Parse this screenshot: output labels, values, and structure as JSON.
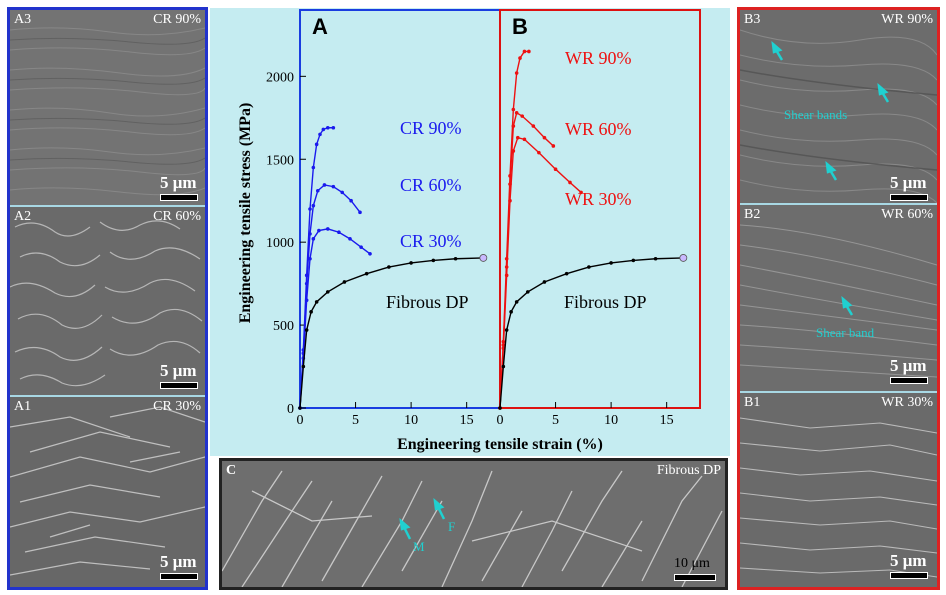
{
  "sem_panels": {
    "A3": {
      "id": "A3",
      "condition": "CR 90%",
      "scale": "5 μm"
    },
    "A2": {
      "id": "A2",
      "condition": "CR 60%",
      "scale": "5 μm"
    },
    "A1": {
      "id": "A1",
      "condition": "CR 30%",
      "scale": "5 μm"
    },
    "B3": {
      "id": "B3",
      "condition": "WR 90%",
      "scale": "5 μm",
      "annotation": "Shear bands"
    },
    "B2": {
      "id": "B2",
      "condition": "WR 60%",
      "scale": "5 μm",
      "annotation": "Shear band"
    },
    "B1": {
      "id": "B1",
      "condition": "WR 30%",
      "scale": "5 μm"
    },
    "C": {
      "id": "C",
      "condition": "Fibrous DP",
      "scale": "10 μm",
      "phase_m": "M",
      "phase_f": "F"
    }
  },
  "colors": {
    "cr": "#1a1aee",
    "wr": "#ee1111",
    "dp": "#000000",
    "chart_bg": "#c5ecf1",
    "annot": "#20d0d0"
  },
  "chart_data": [
    {
      "panel": "A",
      "type": "line",
      "xlabel": "Engineering tensile strain (%)",
      "ylabel": "Engineering tensile stress (MPa)",
      "xlim": [
        0,
        18
      ],
      "ylim": [
        0,
        2400
      ],
      "xticks": [
        0,
        5,
        10,
        15
      ],
      "yticks": [
        0,
        500,
        1000,
        1500,
        2000
      ],
      "series": [
        {
          "name": "CR 90%",
          "color": "#1a1aee",
          "points": [
            [
              0,
              0
            ],
            [
              0.3,
              350
            ],
            [
              0.6,
              800
            ],
            [
              0.9,
              1200
            ],
            [
              1.2,
              1450
            ],
            [
              1.5,
              1590
            ],
            [
              1.8,
              1650
            ],
            [
              2.1,
              1680
            ],
            [
              2.5,
              1690
            ],
            [
              3.0,
              1690
            ]
          ]
        },
        {
          "name": "CR 60%",
          "color": "#1a1aee",
          "points": [
            [
              0,
              0
            ],
            [
              0.3,
              330
            ],
            [
              0.6,
              750
            ],
            [
              0.9,
              1050
            ],
            [
              1.2,
              1220
            ],
            [
              1.6,
              1310
            ],
            [
              2.2,
              1345
            ],
            [
              3.0,
              1335
            ],
            [
              3.8,
              1300
            ],
            [
              4.6,
              1250
            ],
            [
              5.4,
              1180
            ]
          ]
        },
        {
          "name": "CR 30%",
          "color": "#1a1aee",
          "points": [
            [
              0,
              0
            ],
            [
              0.3,
              300
            ],
            [
              0.6,
              650
            ],
            [
              0.9,
              900
            ],
            [
              1.2,
              1020
            ],
            [
              1.7,
              1070
            ],
            [
              2.5,
              1080
            ],
            [
              3.5,
              1060
            ],
            [
              4.5,
              1020
            ],
            [
              5.5,
              970
            ],
            [
              6.3,
              930
            ]
          ]
        },
        {
          "name": "Fibrous DP",
          "color": "#000000",
          "points": [
            [
              0,
              0
            ],
            [
              0.3,
              250
            ],
            [
              0.6,
              470
            ],
            [
              1.0,
              580
            ],
            [
              1.5,
              640
            ],
            [
              2.5,
              700
            ],
            [
              4,
              760
            ],
            [
              6,
              810
            ],
            [
              8,
              850
            ],
            [
              10,
              875
            ],
            [
              12,
              890
            ],
            [
              14,
              900
            ],
            [
              16.5,
              905
            ]
          ]
        }
      ]
    },
    {
      "panel": "B",
      "type": "line",
      "xlim": [
        0,
        18
      ],
      "ylim": [
        0,
        2400
      ],
      "xticks": [
        0,
        5,
        10,
        15
      ],
      "series": [
        {
          "name": "WR 90%",
          "color": "#ee1111",
          "points": [
            [
              0,
              0
            ],
            [
              0.3,
              400
            ],
            [
              0.6,
              900
            ],
            [
              0.9,
              1400
            ],
            [
              1.2,
              1800
            ],
            [
              1.5,
              2020
            ],
            [
              1.8,
              2110
            ],
            [
              2.2,
              2150
            ],
            [
              2.6,
              2150
            ]
          ]
        },
        {
          "name": "WR 60%",
          "color": "#ee1111",
          "points": [
            [
              0,
              0
            ],
            [
              0.3,
              380
            ],
            [
              0.6,
              850
            ],
            [
              0.9,
              1350
            ],
            [
              1.2,
              1700
            ],
            [
              1.5,
              1780
            ],
            [
              2.0,
              1760
            ],
            [
              3.0,
              1700
            ],
            [
              4.0,
              1630
            ],
            [
              4.8,
              1580
            ]
          ]
        },
        {
          "name": "WR 30%",
          "color": "#ee1111",
          "points": [
            [
              0,
              0
            ],
            [
              0.3,
              360
            ],
            [
              0.6,
              800
            ],
            [
              0.9,
              1250
            ],
            [
              1.2,
              1550
            ],
            [
              1.6,
              1630
            ],
            [
              2.2,
              1620
            ],
            [
              3.5,
              1540
            ],
            [
              5,
              1440
            ],
            [
              6.3,
              1360
            ],
            [
              7.3,
              1300
            ]
          ]
        },
        {
          "name": "Fibrous DP",
          "color": "#000000",
          "points": [
            [
              0,
              0
            ],
            [
              0.3,
              250
            ],
            [
              0.6,
              470
            ],
            [
              1.0,
              580
            ],
            [
              1.5,
              640
            ],
            [
              2.5,
              700
            ],
            [
              4,
              760
            ],
            [
              6,
              810
            ],
            [
              8,
              850
            ],
            [
              10,
              875
            ],
            [
              12,
              890
            ],
            [
              14,
              900
            ],
            [
              16.5,
              905
            ]
          ]
        }
      ]
    }
  ]
}
